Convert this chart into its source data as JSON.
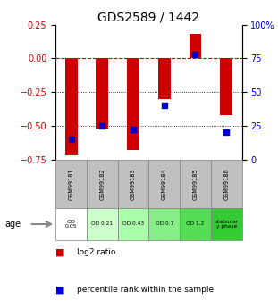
{
  "title": "GDS2589 / 1442",
  "samples": [
    "GSM99181",
    "GSM99182",
    "GSM99183",
    "GSM99184",
    "GSM99185",
    "GSM99186"
  ],
  "log2_ratio": [
    -0.72,
    -0.52,
    -0.68,
    -0.3,
    0.18,
    -0.42
  ],
  "percentile_rank": [
    15,
    25,
    22,
    40,
    78,
    20
  ],
  "age_labels": [
    "OD\n0.05",
    "OD 0.21",
    "OD 0.43",
    "OD 0.7",
    "OD 1.2",
    "stationar\ny phase"
  ],
  "age_colors": [
    "#ffffff",
    "#ccffcc",
    "#aaffaa",
    "#88ee88",
    "#55dd55",
    "#33cc33"
  ],
  "ylim_left": [
    -0.75,
    0.25
  ],
  "ylim_right": [
    0,
    100
  ],
  "bar_color": "#cc0000",
  "dot_color": "#0000cc",
  "bar_width": 0.4,
  "left_yticks": [
    -0.75,
    -0.5,
    -0.25,
    0,
    0.25
  ],
  "right_yticks": [
    0,
    25,
    50,
    75,
    100
  ]
}
